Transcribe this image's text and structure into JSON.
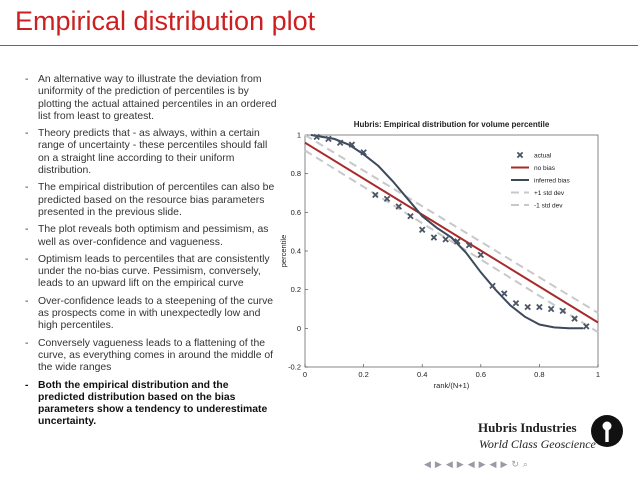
{
  "slide": {
    "title": "Empirical distribution plot",
    "bullets": [
      "An alternative way to illustrate the deviation from uniformity of the prediction of percentiles is by plotting the actual attained percentiles in an ordered list from least to greatest.",
      "Theory predicts that - as always, within a certain range of uncertainty - these percentiles should fall on a straight line according to their uniform distribution.",
      "The empirical distribution of percentiles can also be predicted based on the resource bias parameters presented in the previous slide.",
      "The plot reveals both optimism and pessimism, as well as over-confidence and vagueness.",
      "Optimism leads to percentiles that are consistently under the no-bias curve. Pessimism, conversely, leads to an upward lift on the empirical curve",
      "Over-confidence leads to a steepening of the curve as prospects come in with unexpectedly low and high percentiles.",
      "Conversely vagueness leads to a flattening of the curve, as everything comes in around the middle of the wide ranges"
    ],
    "bullet_strong": "Both the empirical distribution and the predicted distribution based on the bias parameters show a tendency to underestimate uncertainty."
  },
  "logo": {
    "name": "Hubris Industries",
    "tagline": "World Class Geoscience"
  },
  "nav": {
    "symbols": [
      "◀",
      "▶",
      "◀",
      "▶",
      "◀",
      "▶",
      "◀",
      "▶",
      "↻",
      "⌕"
    ]
  },
  "colors": {
    "title": "#cc1f1f",
    "no_bias": "#a82a2a",
    "inferred_bias": "#3c4a5c",
    "std": "#c8c8c8",
    "actual": "#4a5566"
  },
  "chart_data": {
    "type": "line",
    "title": "Hubris: Empirical distribution for volume percentile",
    "xlabel": "rank/(N+1)",
    "ylabel": "percentile",
    "xlim": [
      0,
      1
    ],
    "ylim": [
      -0.2,
      1
    ],
    "xticks": [
      0,
      0.2,
      0.4,
      0.6,
      0.8,
      1
    ],
    "xtick_labels": [
      "0",
      "0.2",
      "0.4",
      "0.6",
      "0.8",
      "1"
    ],
    "yticks": [
      -0.2,
      0,
      0.2,
      0.4,
      0.6,
      0.8,
      1
    ],
    "ytick_labels": [
      "-0.2",
      "0",
      "0.2",
      "0.4",
      "0.6",
      "0.8",
      "1"
    ],
    "legend_position": "top-right",
    "series": [
      {
        "name": "actual",
        "kind": "markers",
        "x": [
          0.04,
          0.08,
          0.12,
          0.16,
          0.2,
          0.24,
          0.28,
          0.32,
          0.36,
          0.4,
          0.44,
          0.48,
          0.52,
          0.56,
          0.6,
          0.64,
          0.68,
          0.72,
          0.76,
          0.8,
          0.84,
          0.88,
          0.92,
          0.96
        ],
        "y": [
          0.99,
          0.98,
          0.96,
          0.95,
          0.91,
          0.69,
          0.67,
          0.63,
          0.58,
          0.51,
          0.47,
          0.46,
          0.45,
          0.43,
          0.38,
          0.22,
          0.18,
          0.13,
          0.11,
          0.11,
          0.1,
          0.09,
          0.05,
          0.01
        ]
      },
      {
        "name": "no bias",
        "kind": "line",
        "x": [
          0,
          1
        ],
        "y": [
          0.96,
          0.03
        ]
      },
      {
        "name": "inferred bias",
        "kind": "line",
        "x": [
          0.02,
          0.1,
          0.15,
          0.2,
          0.25,
          0.3,
          0.35,
          0.4,
          0.45,
          0.5,
          0.55,
          0.6,
          0.65,
          0.7,
          0.75,
          0.8,
          0.85,
          0.9,
          0.95
        ],
        "y": [
          1.0,
          0.98,
          0.95,
          0.9,
          0.84,
          0.76,
          0.67,
          0.58,
          0.52,
          0.47,
          0.39,
          0.29,
          0.2,
          0.12,
          0.06,
          0.02,
          0.005,
          0.0,
          0.0
        ]
      },
      {
        "name": "+1 std dev",
        "kind": "dashed",
        "x": [
          0,
          1
        ],
        "y": [
          1.0,
          0.08
        ]
      },
      {
        "name": "-1 std dev",
        "kind": "dashed",
        "x": [
          0,
          1
        ],
        "y": [
          0.92,
          -0.02
        ]
      }
    ]
  }
}
